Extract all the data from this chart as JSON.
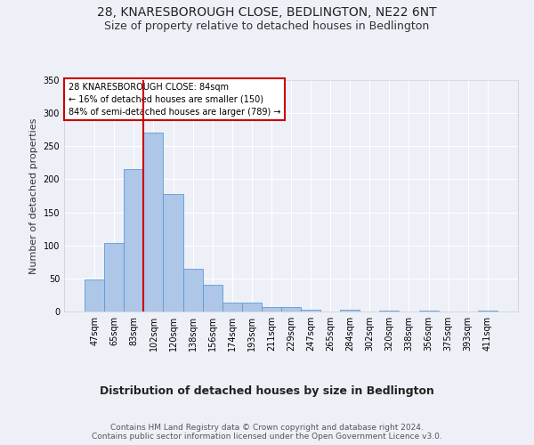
{
  "title": "28, KNARESBOROUGH CLOSE, BEDLINGTON, NE22 6NT",
  "subtitle": "Size of property relative to detached houses in Bedlington",
  "xlabel": "Distribution of detached houses by size in Bedlington",
  "ylabel": "Number of detached properties",
  "categories": [
    "47sqm",
    "65sqm",
    "83sqm",
    "102sqm",
    "120sqm",
    "138sqm",
    "156sqm",
    "174sqm",
    "193sqm",
    "211sqm",
    "229sqm",
    "247sqm",
    "265sqm",
    "284sqm",
    "302sqm",
    "320sqm",
    "338sqm",
    "356sqm",
    "375sqm",
    "393sqm",
    "411sqm"
  ],
  "values": [
    48,
    103,
    215,
    270,
    178,
    65,
    40,
    14,
    14,
    7,
    7,
    3,
    0,
    3,
    0,
    2,
    0,
    2,
    0,
    0,
    2
  ],
  "bar_color": "#aec6e8",
  "bar_edge_color": "#5b9bd5",
  "annotation_box_text": "28 KNARESBOROUGH CLOSE: 84sqm\n← 16% of detached houses are smaller (150)\n84% of semi-detached houses are larger (789) →",
  "annotation_box_color": "#ffffff",
  "annotation_box_edge_color": "#cc0000",
  "vline_x": 2.5,
  "vline_color": "#cc0000",
  "ylim": [
    0,
    350
  ],
  "yticks": [
    0,
    50,
    100,
    150,
    200,
    250,
    300,
    350
  ],
  "bg_color": "#eef0f8",
  "plot_bg_color": "#eef0f8",
  "grid_color": "#ffffff",
  "footer_text": "Contains HM Land Registry data © Crown copyright and database right 2024.\nContains public sector information licensed under the Open Government Licence v3.0.",
  "title_fontsize": 10,
  "subtitle_fontsize": 9,
  "xlabel_fontsize": 9,
  "ylabel_fontsize": 8,
  "tick_fontsize": 7,
  "footer_fontsize": 6.5
}
